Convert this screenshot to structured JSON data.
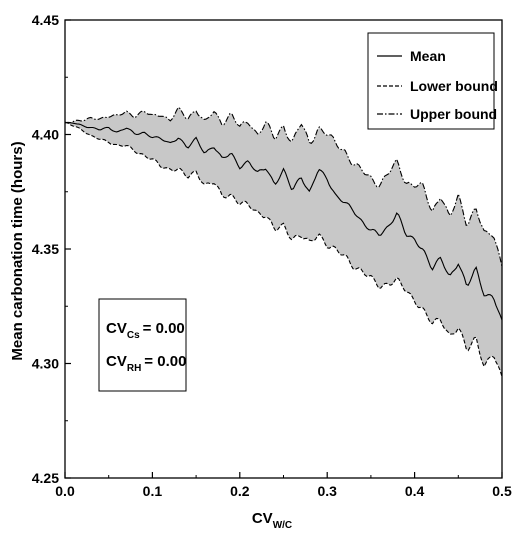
{
  "chart_data": {
    "type": "line",
    "xlabel": {
      "main": "CV",
      "sub": "W/C"
    },
    "ylabel": "Mean carbonation time (hours)",
    "xlim": [
      0.0,
      0.5
    ],
    "ylim": [
      4.25,
      4.45
    ],
    "x_ticks": [
      0.0,
      0.1,
      0.2,
      0.3,
      0.4,
      0.5
    ],
    "x_tick_labels": [
      "0.0",
      "0.1",
      "0.2",
      "0.3",
      "0.4",
      "0.5"
    ],
    "y_ticks": [
      4.25,
      4.3,
      4.35,
      4.4,
      4.45
    ],
    "y_tick_labels": [
      "4.25",
      "4.30",
      "4.35",
      "4.40",
      "4.45"
    ],
    "grid": false,
    "legend_position": "top-right",
    "legend": [
      {
        "label": "Mean",
        "style": "solid"
      },
      {
        "label": "Lower bound",
        "style": "dashed"
      },
      {
        "label": "Upper bound",
        "style": "dashdot"
      }
    ],
    "band_fill": "#c8c8c8",
    "annotations": [
      {
        "main": "CV",
        "sub": "Cs",
        "value": "= 0.00"
      },
      {
        "main": "CV",
        "sub": "RH",
        "value": "= 0.00"
      }
    ],
    "x": [
      0.0,
      0.01,
      0.02,
      0.03,
      0.04,
      0.05,
      0.06,
      0.07,
      0.08,
      0.09,
      0.1,
      0.11,
      0.12,
      0.13,
      0.14,
      0.15,
      0.16,
      0.17,
      0.18,
      0.19,
      0.2,
      0.21,
      0.22,
      0.23,
      0.24,
      0.25,
      0.26,
      0.27,
      0.28,
      0.29,
      0.3,
      0.31,
      0.32,
      0.33,
      0.34,
      0.35,
      0.36,
      0.37,
      0.38,
      0.39,
      0.4,
      0.41,
      0.42,
      0.43,
      0.44,
      0.45,
      0.46,
      0.47,
      0.48,
      0.49,
      0.5
    ],
    "series": [
      {
        "name": "Mean",
        "values": [
          4.405,
          4.405,
          4.404,
          4.403,
          4.402,
          4.403,
          4.401,
          4.403,
          4.4,
          4.401,
          4.399,
          4.398,
          4.396,
          4.399,
          4.394,
          4.398,
          4.392,
          4.395,
          4.389,
          4.392,
          4.386,
          4.388,
          4.383,
          4.386,
          4.378,
          4.384,
          4.376,
          4.382,
          4.374,
          4.385,
          4.381,
          4.373,
          4.37,
          4.367,
          4.362,
          4.358,
          4.356,
          4.36,
          4.366,
          4.356,
          4.354,
          4.35,
          4.341,
          4.346,
          4.338,
          4.344,
          4.333,
          4.342,
          4.33,
          4.329,
          4.318
        ]
      },
      {
        "name": "Lower bound",
        "values": [
          4.405,
          4.404,
          4.402,
          4.399,
          4.398,
          4.397,
          4.395,
          4.395,
          4.393,
          4.391,
          4.389,
          4.386,
          4.385,
          4.385,
          4.381,
          4.384,
          4.378,
          4.379,
          4.373,
          4.374,
          4.37,
          4.369,
          4.366,
          4.365,
          4.358,
          4.36,
          4.355,
          4.356,
          4.352,
          4.357,
          4.352,
          4.349,
          4.347,
          4.343,
          4.34,
          4.337,
          4.334,
          4.335,
          4.336,
          4.332,
          4.328,
          4.323,
          4.317,
          4.32,
          4.312,
          4.315,
          4.306,
          4.312,
          4.298,
          4.304,
          4.294
        ]
      },
      {
        "name": "Upper bound",
        "values": [
          4.405,
          4.406,
          4.406,
          4.407,
          4.407,
          4.408,
          4.408,
          4.41,
          4.408,
          4.41,
          4.408,
          4.409,
          4.406,
          4.411,
          4.407,
          4.411,
          4.405,
          4.41,
          4.405,
          4.409,
          4.403,
          4.406,
          4.4,
          4.405,
          4.398,
          4.404,
          4.396,
          4.405,
          4.396,
          4.403,
          4.4,
          4.396,
          4.393,
          4.387,
          4.384,
          4.381,
          4.378,
          4.383,
          4.388,
          4.379,
          4.378,
          4.377,
          4.366,
          4.374,
          4.363,
          4.373,
          4.361,
          4.368,
          4.356,
          4.357,
          4.343
        ]
      }
    ]
  }
}
